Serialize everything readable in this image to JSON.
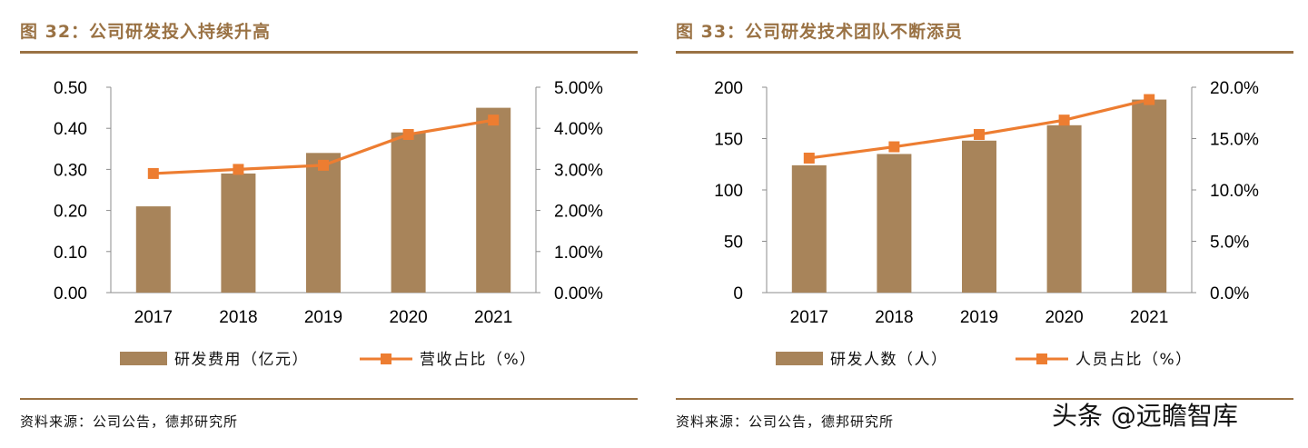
{
  "colors": {
    "accent": "#9a7244",
    "bar": "#a8845a",
    "line": "#ed7d31"
  },
  "left": {
    "title": "图 32：公司研发投入持续升高",
    "source": "资料来源：公司公告，德邦研究所"
  },
  "right": {
    "title": "图 33：公司研发技术团队不断添员",
    "source": "资料来源：公司公告，德邦研究所"
  },
  "watermark": "头条 @远瞻智库",
  "chart_data": [
    {
      "type": "bar",
      "title": "图 32：公司研发投入持续升高",
      "categories": [
        "2017",
        "2018",
        "2019",
        "2020",
        "2021"
      ],
      "series": [
        {
          "name": "研发费用（亿元）",
          "type": "bar",
          "axis": "left",
          "values": [
            0.21,
            0.29,
            0.34,
            0.39,
            0.45
          ]
        },
        {
          "name": "营收占比（%）",
          "type": "line",
          "axis": "right",
          "values": [
            2.9,
            3.0,
            3.1,
            3.85,
            4.2
          ]
        }
      ],
      "ylim": [
        0,
        0.5
      ],
      "yticks": [
        "0.00",
        "0.10",
        "0.20",
        "0.30",
        "0.40",
        "0.50"
      ],
      "y2lim": [
        0,
        5
      ],
      "y2ticks": [
        "0.00%",
        "1.00%",
        "2.00%",
        "3.00%",
        "4.00%",
        "5.00%"
      ],
      "legend": "bottom",
      "grid": false
    },
    {
      "type": "bar",
      "title": "图 33：公司研发技术团队不断添员",
      "categories": [
        "2017",
        "2018",
        "2019",
        "2020",
        "2021"
      ],
      "series": [
        {
          "name": "研发人数（人）",
          "type": "bar",
          "axis": "left",
          "values": [
            124,
            135,
            148,
            163,
            188
          ]
        },
        {
          "name": "人员占比（%）",
          "type": "line",
          "axis": "right",
          "values": [
            13.1,
            14.2,
            15.4,
            16.8,
            18.8
          ]
        }
      ],
      "ylim": [
        0,
        200
      ],
      "yticks": [
        "0",
        "50",
        "100",
        "150",
        "200"
      ],
      "y2lim": [
        0,
        20
      ],
      "y2ticks": [
        "0.0%",
        "5.0%",
        "10.0%",
        "15.0%",
        "20.0%"
      ],
      "legend": "bottom",
      "grid": false
    }
  ]
}
